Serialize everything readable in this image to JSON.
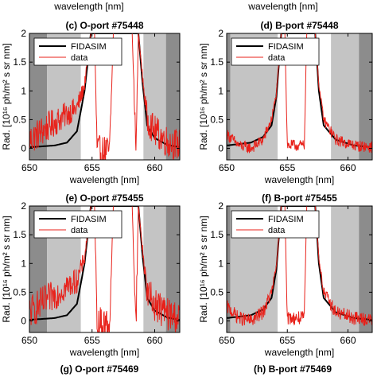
{
  "header": {
    "left_xlabel": "wavelength [nm]",
    "right_xlabel": "wavelength [nm]"
  },
  "footer": {
    "left_title": "(g) O-port #75469",
    "right_title": "(h) B-port #75469"
  },
  "colors": {
    "fidasim": "#000000",
    "data": "#e8211a",
    "dark_shade": "#8c8c8c",
    "light_shade": "#c4c4c4"
  },
  "chart_data": [
    {
      "id": "c",
      "type": "line",
      "title": "(c) O-port #75448",
      "xlabel": "wavelength [nm]",
      "ylabel": "Rad. [10¹⁶ ph/m² s sr nm]",
      "xlim": [
        650,
        662
      ],
      "ylim": [
        -0.2,
        2
      ],
      "xticks": [
        650,
        655,
        660
      ],
      "yticks": [
        0,
        0.5,
        1,
        1.5,
        2
      ],
      "legend": {
        "position": "top-left",
        "entries": [
          "FIDASIM",
          "data"
        ]
      },
      "shaded_regions": [
        {
          "x": [
            650,
            651.4
          ],
          "shade": "dark"
        },
        {
          "x": [
            651.4,
            654.1
          ],
          "shade": "light"
        },
        {
          "x": [
            659.1,
            660.9
          ],
          "shade": "light"
        },
        {
          "x": [
            660.9,
            662
          ],
          "shade": "dark"
        }
      ],
      "series": [
        {
          "name": "FIDASIM",
          "x": [
            650,
            652,
            653,
            653.8,
            654.4,
            654.9,
            655.2,
            658.7,
            659.0,
            659.4,
            660,
            661,
            662
          ],
          "y": [
            0.02,
            0.05,
            0.1,
            0.3,
            1.0,
            2.0,
            2.0,
            2.0,
            1.2,
            0.4,
            0.18,
            0.06,
            0.02
          ]
        },
        {
          "name": "data",
          "x": [
            650,
            651,
            652,
            653,
            653.8,
            654.4,
            654.9,
            655.2,
            655.4,
            656.4,
            656.7,
            658.2,
            658.5,
            658.7,
            659.0,
            659.4,
            660,
            661,
            662
          ],
          "y": [
            0.15,
            0.3,
            0.45,
            0.6,
            0.7,
            1.1,
            2.0,
            2.0,
            -0.05,
            -0.05,
            2.0,
            2.0,
            -0.05,
            2.0,
            1.3,
            0.5,
            0.3,
            0.12,
            0.05
          ],
          "noise": 0.28
        }
      ]
    },
    {
      "id": "d",
      "type": "line",
      "title": "(d) B-port #75448",
      "xlabel": "wavelength [nm]",
      "ylabel": "Rad. [10¹⁶ ph/m² s sr nm]",
      "xlim": [
        650,
        662
      ],
      "ylim": [
        -0.2,
        2
      ],
      "xticks": [
        650,
        655,
        660
      ],
      "yticks": [
        0,
        0.5,
        1,
        1.5,
        2
      ],
      "legend": {
        "position": "top-left",
        "entries": [
          "FIDASIM",
          "data"
        ]
      },
      "shaded_regions": [
        {
          "x": [
            650,
            650.3
          ],
          "shade": "dark"
        },
        {
          "x": [
            650.3,
            654.2
          ],
          "shade": "light"
        },
        {
          "x": [
            658.6,
            660.9
          ],
          "shade": "light"
        },
        {
          "x": [
            660.9,
            662
          ],
          "shade": "dark"
        }
      ],
      "series": [
        {
          "name": "FIDASIM",
          "x": [
            650,
            652,
            653,
            653.7,
            654.1,
            654.5,
            654.8,
            657.3,
            657.6,
            658,
            659,
            660.5,
            662
          ],
          "y": [
            0.05,
            0.1,
            0.2,
            0.4,
            0.9,
            2.0,
            2.0,
            2.0,
            1.0,
            0.4,
            0.15,
            0.05,
            0.02
          ]
        },
        {
          "name": "data",
          "x": [
            650,
            651,
            652,
            653,
            653.7,
            654.1,
            654.5,
            654.8,
            655.0,
            656.4,
            656.6,
            657.3,
            657.6,
            658,
            659,
            660.5,
            662
          ],
          "y": [
            0.25,
            0.05,
            0.0,
            0.15,
            0.5,
            0.95,
            2.0,
            2.0,
            0.05,
            0.05,
            2.0,
            2.0,
            1.1,
            0.5,
            0.15,
            0.05,
            0.02
          ],
          "noise": 0.1
        }
      ]
    },
    {
      "id": "e",
      "type": "line",
      "title": "(e) O-port #75455",
      "xlabel": "wavelength [nm]",
      "ylabel": "Rad. [10¹⁶ ph/m² s sr nm]",
      "xlim": [
        650,
        662
      ],
      "ylim": [
        -0.2,
        2
      ],
      "xticks": [
        650,
        655,
        660
      ],
      "yticks": [
        0,
        0.5,
        1,
        1.5,
        2
      ],
      "legend": {
        "position": "top-left",
        "entries": [
          "FIDASIM",
          "data"
        ]
      },
      "shaded_regions": [
        {
          "x": [
            650,
            651.4
          ],
          "shade": "dark"
        },
        {
          "x": [
            651.4,
            654.1
          ],
          "shade": "light"
        },
        {
          "x": [
            659.1,
            660.9
          ],
          "shade": "light"
        },
        {
          "x": [
            660.9,
            662
          ],
          "shade": "dark"
        }
      ],
      "series": [
        {
          "name": "FIDASIM",
          "x": [
            650,
            652,
            653,
            653.8,
            654.4,
            654.9,
            655.2,
            658.7,
            659.0,
            659.4,
            660,
            661,
            662
          ],
          "y": [
            0.02,
            0.05,
            0.1,
            0.3,
            1.0,
            2.0,
            2.0,
            2.0,
            1.2,
            0.4,
            0.18,
            0.06,
            0.02
          ]
        },
        {
          "name": "data",
          "x": [
            650,
            651,
            652,
            653,
            653.8,
            654.4,
            654.9,
            655.2,
            655.4,
            656.4,
            656.7,
            658.2,
            658.5,
            658.7,
            659.0,
            659.4,
            660,
            661,
            662
          ],
          "y": [
            0.15,
            0.3,
            0.45,
            0.6,
            0.7,
            1.1,
            2.0,
            2.0,
            -0.05,
            -0.05,
            2.0,
            2.0,
            -0.05,
            2.0,
            1.3,
            0.5,
            0.3,
            0.12,
            0.05
          ],
          "noise": 0.3
        }
      ]
    },
    {
      "id": "f",
      "type": "line",
      "title": "(f) B-port #75455",
      "xlabel": "wavelength [nm]",
      "ylabel": "Rad. [10¹⁶ ph/m² s sr nm]",
      "xlim": [
        650,
        662
      ],
      "ylim": [
        -0.2,
        2
      ],
      "xticks": [
        650,
        655,
        660
      ],
      "yticks": [
        0,
        0.5,
        1,
        1.5,
        2
      ],
      "legend": {
        "position": "top-left",
        "entries": [
          "FIDASIM",
          "data"
        ]
      },
      "shaded_regions": [
        {
          "x": [
            650,
            650.3
          ],
          "shade": "dark"
        },
        {
          "x": [
            650.3,
            654.2
          ],
          "shade": "light"
        },
        {
          "x": [
            658.6,
            660.9
          ],
          "shade": "light"
        },
        {
          "x": [
            660.9,
            662
          ],
          "shade": "dark"
        }
      ],
      "series": [
        {
          "name": "FIDASIM",
          "x": [
            650,
            652,
            653,
            653.7,
            654.1,
            654.5,
            654.8,
            657.3,
            657.6,
            658,
            659,
            660.5,
            662
          ],
          "y": [
            0.05,
            0.1,
            0.2,
            0.4,
            0.9,
            2.0,
            2.0,
            2.0,
            1.0,
            0.4,
            0.15,
            0.05,
            0.02
          ]
        },
        {
          "name": "data",
          "x": [
            650,
            651,
            652,
            653,
            653.7,
            654.1,
            654.5,
            654.8,
            655.0,
            656.4,
            656.6,
            657.3,
            657.6,
            658,
            659,
            660.5,
            662
          ],
          "y": [
            0.25,
            0.05,
            0.0,
            0.15,
            0.5,
            0.95,
            2.0,
            2.0,
            0.05,
            0.05,
            2.0,
            2.0,
            1.1,
            0.5,
            0.15,
            0.05,
            0.02
          ],
          "noise": 0.12
        }
      ]
    }
  ]
}
